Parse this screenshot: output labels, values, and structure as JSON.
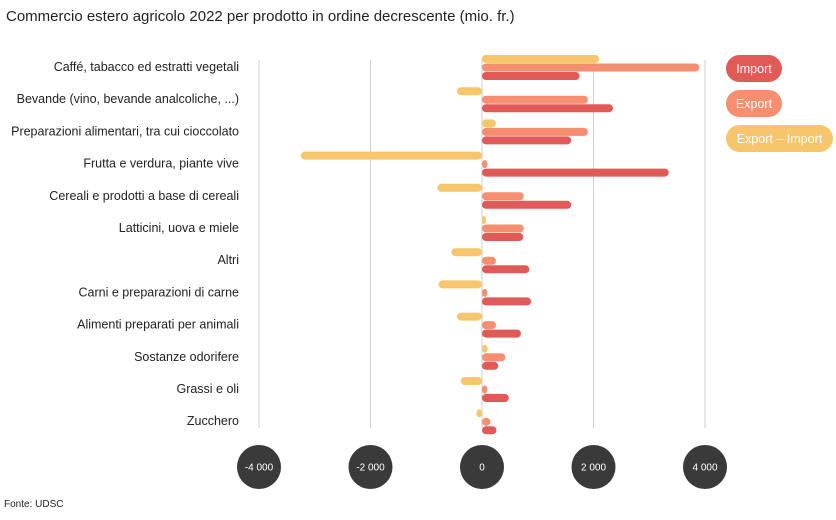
{
  "title": "Commercio estero agricolo 2022 per prodotto in ordine decrescente (mio. fr.)",
  "source": "Fonte: UDSC",
  "chart_data": {
    "type": "bar",
    "orientation": "horizontal",
    "categories": [
      "Caffé, tabacco ed estratti vegetali",
      "Bevande (vino, bevande analcoliche, ...)",
      "Preparazioni alimentari, tra cui cioccolato",
      "Frutta e verdura, piante vive",
      "Cereali e prodotti a base di cereali",
      "Latticini, uova e miele",
      "Altri",
      "Carni e preparazioni di carne",
      "Alimenti preparati per animali",
      "Sostanze odorifere",
      "Grassi e oli",
      "Zucchero"
    ],
    "series": [
      {
        "name": "Export – Import",
        "color": "#f7c56b",
        "values": [
          2100,
          -450,
          250,
          -3250,
          -800,
          20,
          -550,
          -780,
          -450,
          100,
          -380,
          -100
        ]
      },
      {
        "name": "Export",
        "color": "#f58f6f",
        "values": [
          3900,
          1900,
          1900,
          100,
          750,
          750,
          250,
          100,
          250,
          420,
          100,
          150
        ]
      },
      {
        "name": "Import",
        "color": "#e05a57",
        "values": [
          1750,
          2350,
          1600,
          3350,
          1600,
          740,
          850,
          880,
          700,
          290,
          480,
          260
        ]
      }
    ],
    "legend_order": [
      "Import",
      "Export",
      "Export – Import"
    ],
    "xlim": [
      -4000,
      4000
    ],
    "xticks": [
      -4000,
      -2000,
      0,
      2000,
      4000
    ],
    "xtick_labels": [
      "-4 000",
      "-2 000",
      "0",
      "2 000",
      "4 000"
    ],
    "grid": "vertical",
    "legend": "top-right"
  }
}
